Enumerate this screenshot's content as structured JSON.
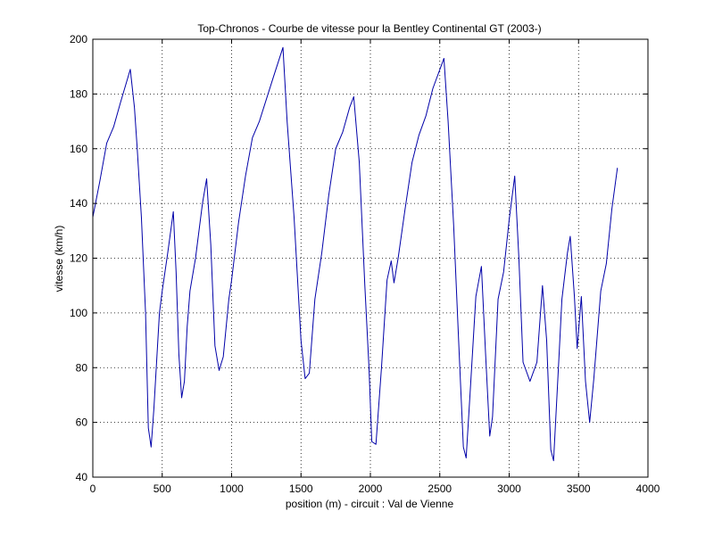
{
  "chart_data": {
    "type": "line",
    "title": "Top-Chronos - Courbe de vitesse pour la Bentley Continental GT (2003-)",
    "xlabel": "position (m) - circuit : Val de Vienne",
    "ylabel": "vitesse (km/h)",
    "xlim": [
      0,
      4000
    ],
    "ylim": [
      40,
      200
    ],
    "xticks": [
      0,
      500,
      1000,
      1500,
      2000,
      2500,
      3000,
      3500,
      4000
    ],
    "yticks": [
      40,
      60,
      80,
      100,
      120,
      140,
      160,
      180,
      200
    ],
    "grid": true,
    "line_color": "#0000a8",
    "series": [
      {
        "points": [
          [
            0,
            135
          ],
          [
            50,
            148
          ],
          [
            100,
            162
          ],
          [
            150,
            168
          ],
          [
            200,
            177
          ],
          [
            270,
            189
          ],
          [
            300,
            175
          ],
          [
            320,
            160
          ],
          [
            350,
            135
          ],
          [
            380,
            100
          ],
          [
            400,
            58
          ],
          [
            420,
            51
          ],
          [
            440,
            65
          ],
          [
            480,
            100
          ],
          [
            500,
            108
          ],
          [
            540,
            122
          ],
          [
            580,
            137
          ],
          [
            600,
            115
          ],
          [
            620,
            85
          ],
          [
            640,
            69
          ],
          [
            660,
            75
          ],
          [
            680,
            95
          ],
          [
            700,
            108
          ],
          [
            740,
            120
          ],
          [
            790,
            140
          ],
          [
            820,
            149
          ],
          [
            850,
            125
          ],
          [
            880,
            88
          ],
          [
            910,
            79
          ],
          [
            940,
            84
          ],
          [
            980,
            105
          ],
          [
            1000,
            112
          ],
          [
            1050,
            133
          ],
          [
            1100,
            150
          ],
          [
            1150,
            164
          ],
          [
            1200,
            170
          ],
          [
            1300,
            186
          ],
          [
            1370,
            197
          ],
          [
            1400,
            170
          ],
          [
            1450,
            135
          ],
          [
            1500,
            90
          ],
          [
            1530,
            76
          ],
          [
            1560,
            78
          ],
          [
            1600,
            105
          ],
          [
            1650,
            122
          ],
          [
            1700,
            143
          ],
          [
            1750,
            160
          ],
          [
            1800,
            166
          ],
          [
            1850,
            175
          ],
          [
            1880,
            179
          ],
          [
            1920,
            155
          ],
          [
            1960,
            110
          ],
          [
            1990,
            80
          ],
          [
            2010,
            53
          ],
          [
            2040,
            52
          ],
          [
            2080,
            80
          ],
          [
            2120,
            112
          ],
          [
            2150,
            119
          ],
          [
            2170,
            111
          ],
          [
            2200,
            120
          ],
          [
            2250,
            138
          ],
          [
            2300,
            155
          ],
          [
            2350,
            165
          ],
          [
            2400,
            172
          ],
          [
            2450,
            182
          ],
          [
            2530,
            193
          ],
          [
            2560,
            170
          ],
          [
            2600,
            132
          ],
          [
            2640,
            85
          ],
          [
            2670,
            51
          ],
          [
            2690,
            47
          ],
          [
            2720,
            72
          ],
          [
            2760,
            106
          ],
          [
            2800,
            117
          ],
          [
            2830,
            85
          ],
          [
            2860,
            55
          ],
          [
            2880,
            62
          ],
          [
            2920,
            105
          ],
          [
            2960,
            115
          ],
          [
            3000,
            134
          ],
          [
            3040,
            150
          ],
          [
            3070,
            120
          ],
          [
            3100,
            82
          ],
          [
            3150,
            75
          ],
          [
            3200,
            82
          ],
          [
            3240,
            110
          ],
          [
            3270,
            90
          ],
          [
            3300,
            50
          ],
          [
            3320,
            46
          ],
          [
            3360,
            85
          ],
          [
            3380,
            105
          ],
          [
            3420,
            122
          ],
          [
            3440,
            128
          ],
          [
            3470,
            106
          ],
          [
            3490,
            87
          ],
          [
            3520,
            106
          ],
          [
            3550,
            75
          ],
          [
            3580,
            60
          ],
          [
            3610,
            76
          ],
          [
            3660,
            108
          ],
          [
            3700,
            118
          ],
          [
            3740,
            138
          ],
          [
            3780,
            153
          ]
        ]
      }
    ]
  }
}
